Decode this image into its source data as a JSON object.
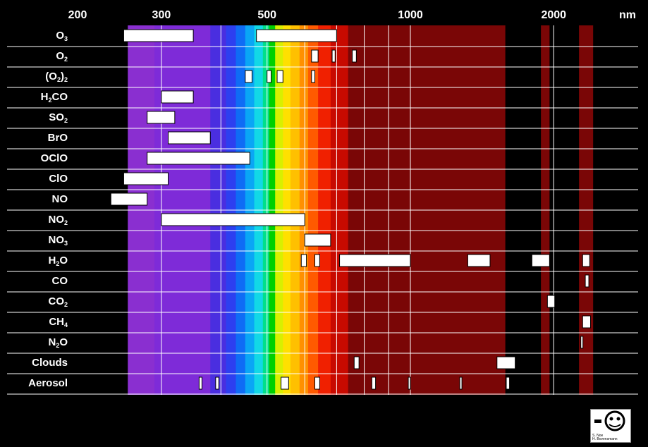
{
  "chart_data": {
    "type": "range-bars",
    "title": "",
    "x_unit": "nm",
    "x_scale": "log",
    "x_ticks": [
      200,
      300,
      500,
      1000,
      2000
    ],
    "x_tick_labels": [
      "200",
      "300",
      "500",
      "1000",
      "2000"
    ],
    "xlim": [
      200,
      2700
    ],
    "rows": [
      {
        "label": "O",
        "sub": "3",
        "pre": "",
        "post": "",
        "ranges": [
          [
            250,
            350
          ],
          [
            475,
            700
          ]
        ]
      },
      {
        "label": "O",
        "sub": "2",
        "pre": "",
        "post": "",
        "ranges": [
          [
            620,
            640
          ],
          [
            685,
            695
          ],
          [
            755,
            770
          ]
        ]
      },
      {
        "label": "(O",
        "sub": "2",
        "pre": "",
        "post": ")",
        "sub2": "2",
        "ranges": [
          [
            450,
            465
          ],
          [
            500,
            510
          ],
          [
            525,
            540
          ],
          [
            620,
            630
          ]
        ]
      },
      {
        "label": "H",
        "sub": "2",
        "pre": "",
        "post": "CO",
        "ranges": [
          [
            300,
            350
          ]
        ]
      },
      {
        "label": "SO",
        "sub": "2",
        "pre": "",
        "post": "",
        "ranges": [
          [
            280,
            320
          ]
        ]
      },
      {
        "label": "BrO",
        "sub": "",
        "pre": "",
        "post": "",
        "ranges": [
          [
            310,
            380
          ]
        ]
      },
      {
        "label": "OClO",
        "sub": "",
        "pre": "",
        "post": "",
        "ranges": [
          [
            280,
            460
          ]
        ]
      },
      {
        "label": "ClO",
        "sub": "",
        "pre": "",
        "post": "",
        "ranges": [
          [
            250,
            310
          ]
        ]
      },
      {
        "label": "NO",
        "sub": "",
        "pre": "",
        "post": "",
        "ranges": [
          [
            235,
            280
          ]
        ]
      },
      {
        "label": "NO",
        "sub": "2",
        "pre": "",
        "post": "",
        "ranges": [
          [
            300,
            600
          ]
        ]
      },
      {
        "label": "NO",
        "sub": "3",
        "pre": "",
        "post": "",
        "ranges": [
          [
            600,
            680
          ]
        ]
      },
      {
        "label": "H",
        "sub": "2",
        "pre": "",
        "post": "O",
        "ranges": [
          [
            590,
            605
          ],
          [
            630,
            645
          ],
          [
            710,
            1000
          ],
          [
            1320,
            1470
          ],
          [
            1800,
            1960
          ],
          [
            2300,
            2380
          ]
        ]
      },
      {
        "label": "CO",
        "sub": "",
        "pre": "",
        "post": "",
        "ranges": [
          [
            2330,
            2370
          ]
        ]
      },
      {
        "label": "CO",
        "sub": "2",
        "pre": "",
        "post": "",
        "ranges": [
          [
            1940,
            2010
          ]
        ]
      },
      {
        "label": "CH",
        "sub": "4",
        "pre": "",
        "post": "",
        "ranges": [
          [
            2300,
            2390
          ]
        ]
      },
      {
        "label": "N",
        "sub": "2",
        "pre": "",
        "post": "O",
        "ranges": [
          [
            2280,
            2290
          ]
        ]
      },
      {
        "label": "Clouds",
        "sub": "",
        "pre": "",
        "post": "",
        "ranges": [
          [
            762,
            780
          ],
          [
            1520,
            1660
          ]
        ]
      },
      {
        "label": "Aerosol",
        "sub": "",
        "pre": "",
        "post": "",
        "ranges": [
          [
            360,
            365
          ],
          [
            390,
            396
          ],
          [
            535,
            555
          ],
          [
            630,
            645
          ],
          [
            830,
            845
          ],
          [
            990,
            995
          ],
          [
            1270,
            1280
          ],
          [
            1590,
            1615
          ]
        ]
      }
    ],
    "grid": true,
    "legend": "none"
  },
  "logo": {
    "text": "S. Noe\nH. Bovensmann"
  },
  "colors": {
    "background": "#000000",
    "bar_fill": "#ffffff",
    "grid": "#ffffff"
  }
}
